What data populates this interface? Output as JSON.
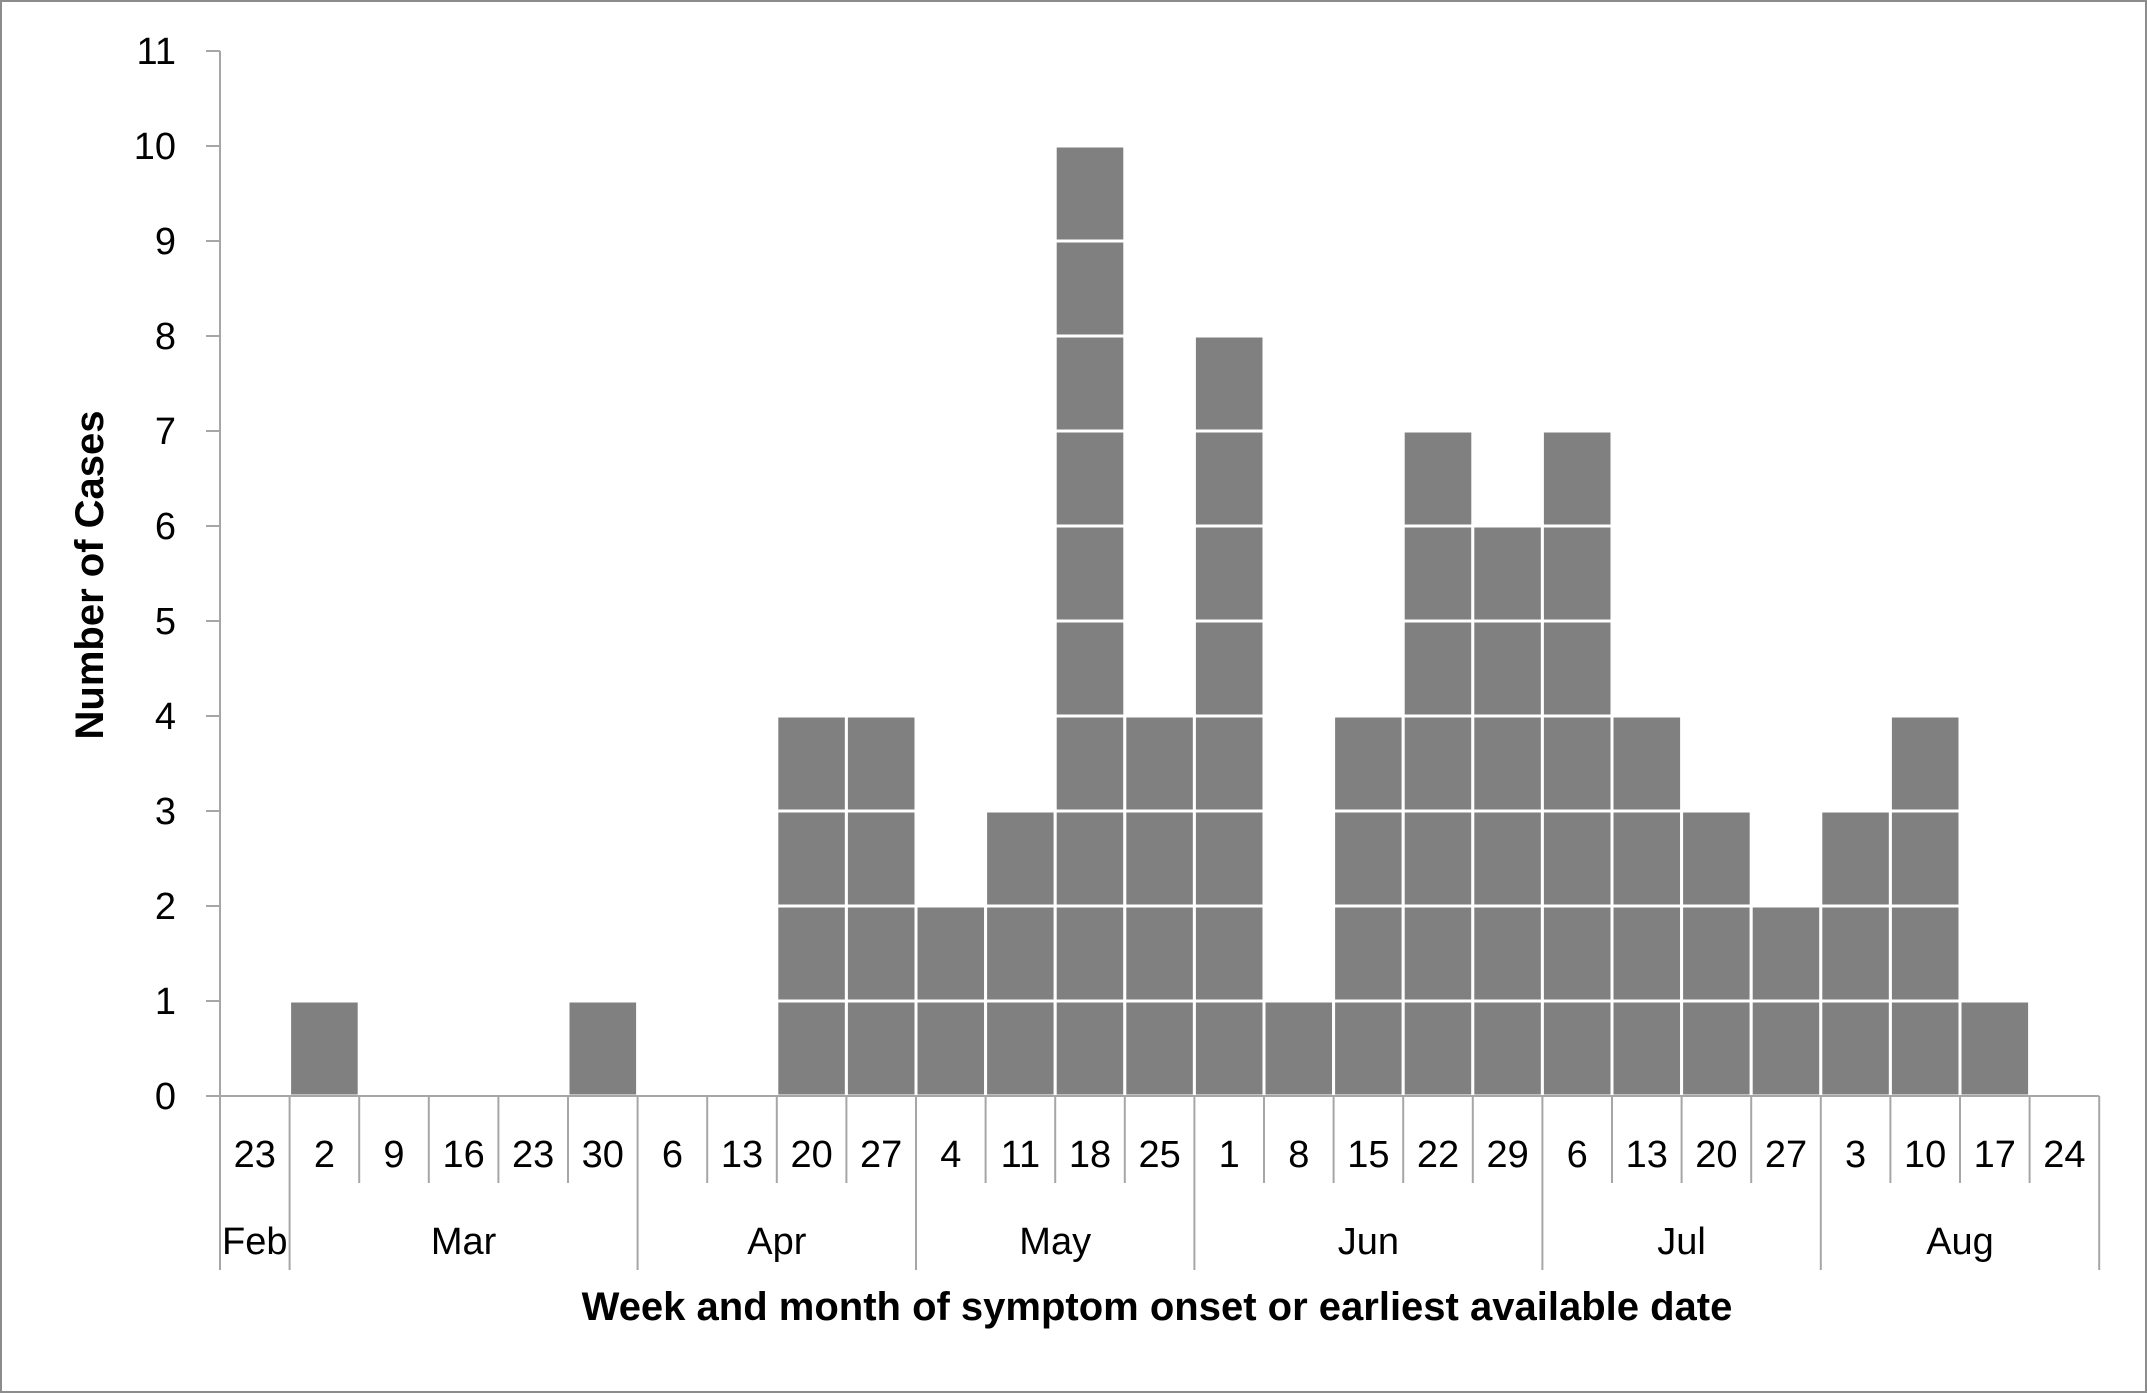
{
  "chart_data": {
    "type": "bar",
    "style": "epicurve-stacked-unit-blocks",
    "bar_color": "#808080",
    "block_border_color": "#ffffff",
    "xlabel": "Week and month of symptom onset or earliest available date",
    "ylabel": "Number of Cases",
    "ylim": [
      0,
      11
    ],
    "yticks": [
      "0",
      "1",
      "2",
      "3",
      "4",
      "5",
      "6",
      "7",
      "8",
      "9",
      "10",
      "11"
    ],
    "grid": false,
    "categories": [
      "23",
      "2",
      "9",
      "16",
      "23",
      "30",
      "6",
      "13",
      "20",
      "27",
      "4",
      "11",
      "18",
      "25",
      "1",
      "8",
      "15",
      "22",
      "29",
      "6",
      "13",
      "20",
      "27",
      "3",
      "10",
      "17",
      "24"
    ],
    "values": [
      0,
      1,
      0,
      0,
      0,
      1,
      0,
      0,
      4,
      4,
      2,
      3,
      10,
      4,
      8,
      1,
      4,
      7,
      6,
      7,
      4,
      3,
      2,
      3,
      4,
      1,
      0
    ],
    "months": [
      {
        "label": "Feb",
        "weeks": 1
      },
      {
        "label": "Mar",
        "weeks": 5
      },
      {
        "label": "Apr",
        "weeks": 4
      },
      {
        "label": "May",
        "weeks": 4
      },
      {
        "label": "Jun",
        "weeks": 5
      },
      {
        "label": "Jul",
        "weeks": 4
      },
      {
        "label": "Aug",
        "weeks": 4
      }
    ]
  }
}
